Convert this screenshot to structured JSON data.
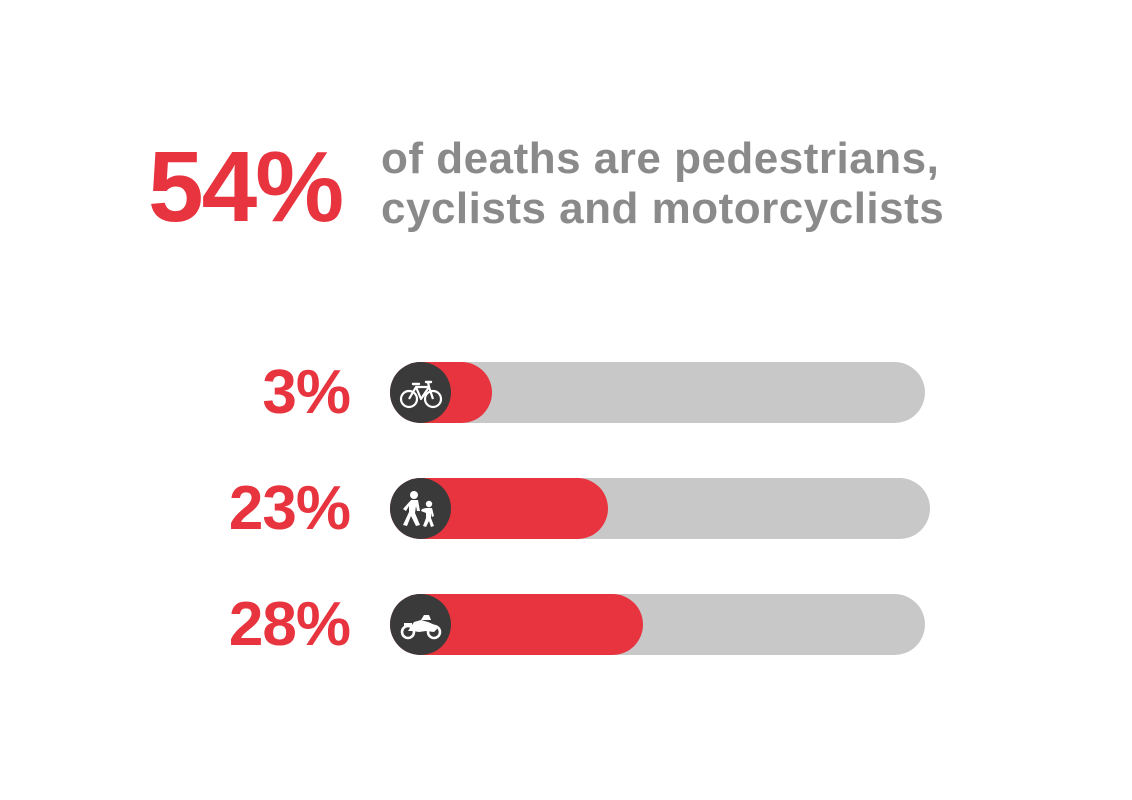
{
  "colors": {
    "accent": "#e8343f",
    "text_grey": "#8a8a8a",
    "track_grey": "#c8c8c8",
    "icon_bg": "#3a3a3a",
    "icon_fg": "#ffffff"
  },
  "headline": {
    "value": "54%",
    "line1": "of deaths are pedestrians,",
    "line2": "cyclists and motorcyclists"
  },
  "chart_data": {
    "type": "bar",
    "orientation": "horizontal",
    "categories": [
      "cyclists",
      "pedestrians",
      "motorcyclists"
    ],
    "values": [
      3,
      23,
      28
    ],
    "value_labels": [
      "3%",
      "23%",
      "28%"
    ],
    "icons": [
      "bicycle-icon",
      "pedestrian-icon",
      "motorcycle-icon"
    ],
    "xlim": [
      0,
      100
    ],
    "grid": false,
    "legend": "none"
  }
}
